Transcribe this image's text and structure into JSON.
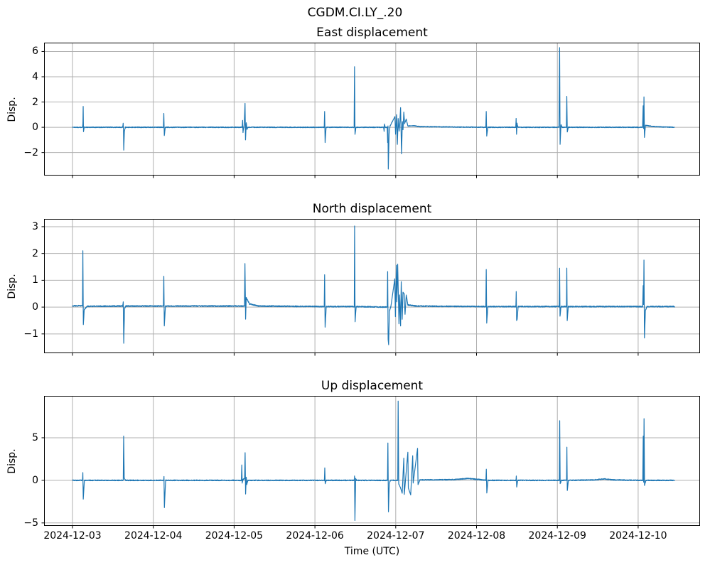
{
  "figure": {
    "suptitle": "CGDM.CI.LY_.20",
    "background": "#ffffff",
    "line_color": "#1f77b4",
    "grid_color": "#b0b0b0",
    "spine_color": "#000000"
  },
  "xaxis": {
    "label": "Time (UTC)",
    "unit": "days since 2024-12-03 00:00 UTC",
    "xlim": [
      -0.352,
      7.766
    ],
    "ticks": [
      {
        "t": 0,
        "label": "2024-12-03"
      },
      {
        "t": 1,
        "label": "2024-12-04"
      },
      {
        "t": 2,
        "label": "2024-12-05"
      },
      {
        "t": 3,
        "label": "2024-12-06"
      },
      {
        "t": 4,
        "label": "2024-12-07"
      },
      {
        "t": 5,
        "label": "2024-12-08"
      },
      {
        "t": 6,
        "label": "2024-12-09"
      },
      {
        "t": 7,
        "label": "2024-12-10"
      }
    ]
  },
  "chart_data": [
    {
      "type": "line",
      "id": "east",
      "title": "East displacement",
      "ylabel": "Disp.",
      "ylim": [
        -3.82,
        6.7
      ],
      "yticks": [
        -2,
        0,
        2,
        4,
        6
      ],
      "noise_amplitude": 0.03,
      "keypoints": [
        [
          0,
          0
        ],
        [
          0.125,
          0
        ],
        [
          0.129,
          0.35
        ],
        [
          0.132,
          1.65
        ],
        [
          0.136,
          -0.35
        ],
        [
          0.145,
          0
        ],
        [
          0.62,
          0
        ],
        [
          0.627,
          0.3
        ],
        [
          0.631,
          -0.3
        ],
        [
          0.634,
          -1.8
        ],
        [
          0.642,
          -0.3
        ],
        [
          0.655,
          0
        ],
        [
          1.125,
          0
        ],
        [
          1.13,
          1.1
        ],
        [
          1.136,
          -0.65
        ],
        [
          1.148,
          0
        ],
        [
          2.1,
          0
        ],
        [
          2.105,
          0.55
        ],
        [
          2.11,
          -0.4
        ],
        [
          2.125,
          0.2
        ],
        [
          2.135,
          1.9
        ],
        [
          2.141,
          -1.0
        ],
        [
          2.15,
          0.35
        ],
        [
          2.16,
          -0.15
        ],
        [
          2.17,
          0
        ],
        [
          3.115,
          0
        ],
        [
          3.12,
          1.25
        ],
        [
          3.126,
          -1.2
        ],
        [
          3.138,
          0
        ],
        [
          3.485,
          0
        ],
        [
          3.49,
          4.8
        ],
        [
          3.496,
          -0.55
        ],
        [
          3.508,
          0
        ],
        [
          3.85,
          0
        ],
        [
          3.856,
          -0.3
        ],
        [
          3.86,
          0.25
        ],
        [
          3.87,
          0
        ],
        [
          3.895,
          0
        ],
        [
          3.9,
          -1.2
        ],
        [
          3.904,
          0.1
        ],
        [
          3.908,
          -3.3
        ],
        [
          3.918,
          -0.5
        ],
        [
          3.93,
          0.1
        ],
        [
          3.99,
          0.85
        ],
        [
          3.998,
          -0.55
        ],
        [
          4.01,
          1.0
        ],
        [
          4.02,
          -1.35
        ],
        [
          4.03,
          0.7
        ],
        [
          4.042,
          -0.3
        ],
        [
          4.05,
          0.3
        ],
        [
          4.06,
          1.55
        ],
        [
          4.072,
          -2.1
        ],
        [
          4.082,
          0.45
        ],
        [
          4.09,
          -0.2
        ],
        [
          4.1,
          1.2
        ],
        [
          4.11,
          0.3
        ],
        [
          4.13,
          0.65
        ],
        [
          4.15,
          0.1
        ],
        [
          4.22,
          0.12
        ],
        [
          4.3,
          0.05
        ],
        [
          5.115,
          0
        ],
        [
          5.12,
          1.25
        ],
        [
          5.126,
          -0.7
        ],
        [
          5.14,
          0
        ],
        [
          5.485,
          0
        ],
        [
          5.49,
          0.7
        ],
        [
          5.495,
          -0.55
        ],
        [
          5.502,
          0.3
        ],
        [
          5.512,
          0
        ],
        [
          6.02,
          0
        ],
        [
          6.028,
          6.3
        ],
        [
          6.034,
          -1.35
        ],
        [
          6.045,
          0.2
        ],
        [
          6.06,
          0
        ],
        [
          6.112,
          0
        ],
        [
          6.117,
          2.45
        ],
        [
          6.123,
          -0.35
        ],
        [
          6.135,
          0
        ],
        [
          7.055,
          0
        ],
        [
          7.062,
          1.7
        ],
        [
          7.067,
          -0.1
        ],
        [
          7.072,
          2.4
        ],
        [
          7.078,
          -0.8
        ],
        [
          7.09,
          0.15
        ],
        [
          7.2,
          0.05
        ],
        [
          7.45,
          0
        ]
      ]
    },
    {
      "type": "line",
      "id": "north",
      "title": "North displacement",
      "ylabel": "Disp.",
      "ylim": [
        -1.72,
        3.29
      ],
      "yticks": [
        -1,
        0,
        1,
        2,
        3
      ],
      "noise_amplitude": 0.02,
      "keypoints": [
        [
          0,
          0.05
        ],
        [
          0.124,
          0.05
        ],
        [
          0.128,
          2.1
        ],
        [
          0.134,
          -0.65
        ],
        [
          0.145,
          -0.1
        ],
        [
          0.18,
          0.03
        ],
        [
          0.62,
          0.04
        ],
        [
          0.628,
          0.2
        ],
        [
          0.634,
          -1.35
        ],
        [
          0.644,
          -0.05
        ],
        [
          0.66,
          0.04
        ],
        [
          1.125,
          0.04
        ],
        [
          1.13,
          1.15
        ],
        [
          1.136,
          -0.7
        ],
        [
          1.15,
          0.04
        ],
        [
          2.128,
          0.04
        ],
        [
          2.134,
          1.62
        ],
        [
          2.139,
          0.4
        ],
        [
          2.142,
          -0.45
        ],
        [
          2.15,
          0.35
        ],
        [
          2.19,
          0.12
        ],
        [
          2.3,
          0.04
        ],
        [
          3.115,
          0.02
        ],
        [
          3.12,
          1.2
        ],
        [
          3.126,
          -0.75
        ],
        [
          3.14,
          0.02
        ],
        [
          3.487,
          0.02
        ],
        [
          3.491,
          3.02
        ],
        [
          3.497,
          -0.55
        ],
        [
          3.51,
          0.02
        ],
        [
          3.895,
          0
        ],
        [
          3.9,
          1.32
        ],
        [
          3.906,
          -1.2
        ],
        [
          3.912,
          -1.4
        ],
        [
          3.922,
          -0.15
        ],
        [
          3.94,
          0.02
        ],
        [
          3.988,
          1.05
        ],
        [
          3.996,
          -0.35
        ],
        [
          4.008,
          1.56
        ],
        [
          4.014,
          0.2
        ],
        [
          4.024,
          1.6
        ],
        [
          4.04,
          -0.62
        ],
        [
          4.048,
          0.45
        ],
        [
          4.06,
          -0.7
        ],
        [
          4.068,
          0.95
        ],
        [
          4.08,
          -0.45
        ],
        [
          4.09,
          0.55
        ],
        [
          4.105,
          0.5
        ],
        [
          4.115,
          -0.28
        ],
        [
          4.13,
          0.45
        ],
        [
          4.15,
          0.08
        ],
        [
          4.25,
          0.04
        ],
        [
          5.115,
          0.02
        ],
        [
          5.12,
          1.4
        ],
        [
          5.126,
          -0.6
        ],
        [
          5.14,
          0.02
        ],
        [
          5.487,
          0.02
        ],
        [
          5.491,
          0.58
        ],
        [
          5.496,
          -0.5
        ],
        [
          5.503,
          -0.45
        ],
        [
          5.515,
          0.02
        ],
        [
          6.023,
          0.02
        ],
        [
          6.028,
          1.45
        ],
        [
          6.033,
          -0.35
        ],
        [
          6.045,
          0.02
        ],
        [
          6.113,
          0.02
        ],
        [
          6.117,
          1.45
        ],
        [
          6.122,
          -0.5
        ],
        [
          6.135,
          0.02
        ],
        [
          7.056,
          0.02
        ],
        [
          7.062,
          0.8
        ],
        [
          7.067,
          0.1
        ],
        [
          7.072,
          1.75
        ],
        [
          7.078,
          -1.15
        ],
        [
          7.09,
          -0.12
        ],
        [
          7.11,
          0.02
        ],
        [
          7.45,
          0.02
        ]
      ]
    },
    {
      "type": "line",
      "id": "up",
      "title": "Up displacement",
      "ylabel": "Disp.",
      "ylim": [
        -5.35,
        9.92
      ],
      "yticks": [
        -5,
        0,
        5
      ],
      "noise_amplitude": 0.055,
      "keypoints": [
        [
          0,
          0
        ],
        [
          0.124,
          0
        ],
        [
          0.128,
          0.9
        ],
        [
          0.133,
          -2.2
        ],
        [
          0.147,
          0
        ],
        [
          0.628,
          0
        ],
        [
          0.633,
          5.2
        ],
        [
          0.64,
          0.3
        ],
        [
          0.655,
          0
        ],
        [
          1.128,
          0
        ],
        [
          1.132,
          0.45
        ],
        [
          1.137,
          -3.2
        ],
        [
          1.152,
          0
        ],
        [
          2.09,
          0
        ],
        [
          2.095,
          1.8
        ],
        [
          2.1,
          -0.3
        ],
        [
          2.11,
          0.1
        ],
        [
          2.13,
          0.2
        ],
        [
          2.136,
          3.25
        ],
        [
          2.142,
          -1.6
        ],
        [
          2.15,
          0.35
        ],
        [
          2.158,
          -0.45
        ],
        [
          2.17,
          0
        ],
        [
          3.117,
          0
        ],
        [
          3.122,
          1.45
        ],
        [
          3.127,
          -0.35
        ],
        [
          3.14,
          0
        ],
        [
          3.486,
          0
        ],
        [
          3.49,
          0.5
        ],
        [
          3.495,
          -4.7
        ],
        [
          3.504,
          0.2
        ],
        [
          3.515,
          0
        ],
        [
          3.898,
          0
        ],
        [
          3.903,
          4.4
        ],
        [
          3.91,
          -3.7
        ],
        [
          3.92,
          -0.35
        ],
        [
          3.935,
          0
        ],
        [
          4.025,
          0
        ],
        [
          4.03,
          9.3
        ],
        [
          4.037,
          -0.4
        ],
        [
          4.06,
          -0.9
        ],
        [
          4.08,
          -1.5
        ],
        [
          4.1,
          2.6
        ],
        [
          4.106,
          -1.65
        ],
        [
          4.15,
          3.3
        ],
        [
          4.156,
          -0.9
        ],
        [
          4.185,
          -1.7
        ],
        [
          4.21,
          2.9
        ],
        [
          4.216,
          -0.3
        ],
        [
          4.27,
          3.75
        ],
        [
          4.276,
          -0.5
        ],
        [
          4.3,
          0.05
        ],
        [
          4.7,
          0.08
        ],
        [
          4.9,
          0.22
        ],
        [
          5.05,
          0.08
        ],
        [
          5.116,
          0
        ],
        [
          5.121,
          1.3
        ],
        [
          5.127,
          -1.5
        ],
        [
          5.142,
          0
        ],
        [
          5.488,
          0
        ],
        [
          5.492,
          0.5
        ],
        [
          5.497,
          -0.8
        ],
        [
          5.51,
          0
        ],
        [
          6.024,
          0
        ],
        [
          6.029,
          7.0
        ],
        [
          6.035,
          -0.4
        ],
        [
          6.05,
          0
        ],
        [
          6.114,
          0
        ],
        [
          6.118,
          3.9
        ],
        [
          6.123,
          -1.2
        ],
        [
          6.137,
          0
        ],
        [
          6.45,
          0.05
        ],
        [
          6.58,
          0.17
        ],
        [
          6.7,
          0.05
        ],
        [
          7.057,
          0
        ],
        [
          7.063,
          5.2
        ],
        [
          7.068,
          -0.2
        ],
        [
          7.073,
          7.25
        ],
        [
          7.079,
          -0.6
        ],
        [
          7.095,
          0
        ],
        [
          7.45,
          0
        ]
      ]
    }
  ]
}
